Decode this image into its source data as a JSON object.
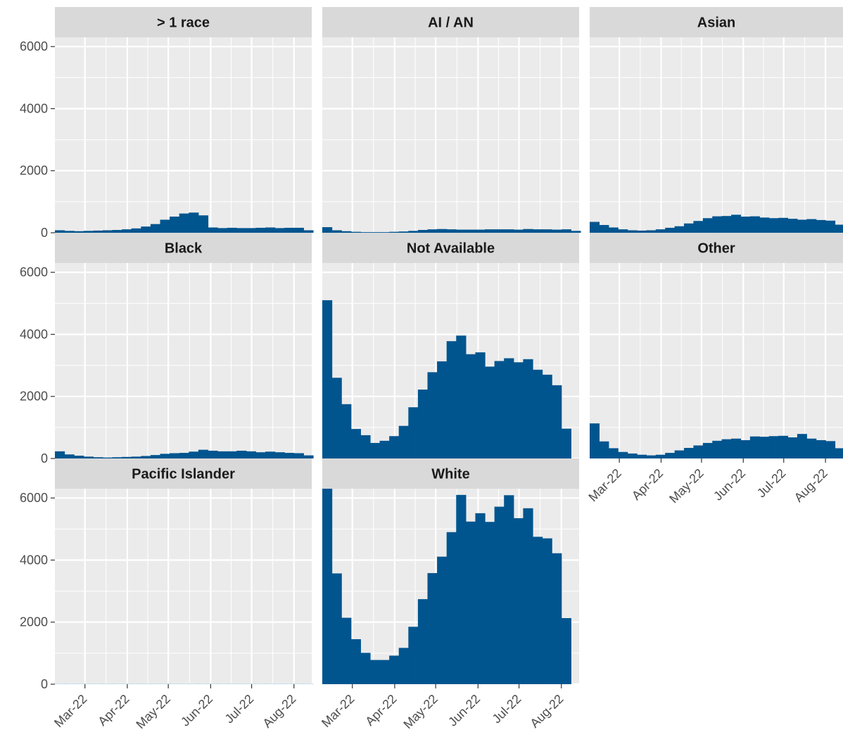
{
  "chart_data": {
    "type": "bar",
    "layout": "facet_wrap",
    "columns": 3,
    "fill_color": "#00558f",
    "panel_background": "#ebebeb",
    "strip_background": "#d9d9d9",
    "grid_color": "#ffffff",
    "shared_y_axis": true,
    "ylim": [
      0,
      6300
    ],
    "y_ticks": [
      0,
      2000,
      4000,
      6000
    ],
    "y_tick_labels": [
      "0",
      "2000",
      "4000",
      "6000"
    ],
    "xlim": [
      "2022-02-07",
      "2022-08-14"
    ],
    "bin_width_days": 7,
    "bin_starts": [
      "2022-02-07",
      "2022-02-14",
      "2022-02-21",
      "2022-02-28",
      "2022-03-07",
      "2022-03-14",
      "2022-03-21",
      "2022-03-28",
      "2022-04-04",
      "2022-04-11",
      "2022-04-18",
      "2022-04-25",
      "2022-05-02",
      "2022-05-09",
      "2022-05-16",
      "2022-05-23",
      "2022-05-30",
      "2022-06-06",
      "2022-06-13",
      "2022-06-20",
      "2022-06-27",
      "2022-07-04",
      "2022-07-11",
      "2022-07-18",
      "2022-07-25",
      "2022-08-01",
      "2022-08-08"
    ],
    "x_ticks": [
      "2022-03-01",
      "2022-04-01",
      "2022-05-01",
      "2022-06-01",
      "2022-07-01",
      "2022-08-01"
    ],
    "x_tick_labels": [
      "Mar-22",
      "Apr-22",
      "May-22",
      "Jun-22",
      "Jul-22",
      "Aug-22"
    ],
    "grid": true,
    "xlabel": "",
    "ylabel": "",
    "panels": [
      {
        "name": "> 1 race",
        "values": [
          80,
          60,
          50,
          60,
          70,
          80,
          90,
          110,
          140,
          200,
          280,
          420,
          520,
          620,
          650,
          560,
          170,
          150,
          160,
          150,
          150,
          160,
          170,
          150,
          160,
          160,
          80
        ]
      },
      {
        "name": "AI / AN",
        "values": [
          180,
          80,
          50,
          30,
          20,
          20,
          20,
          30,
          40,
          60,
          90,
          110,
          120,
          110,
          100,
          100,
          100,
          110,
          110,
          110,
          100,
          120,
          110,
          110,
          100,
          110,
          60
        ]
      },
      {
        "name": "Asian",
        "values": [
          350,
          250,
          170,
          110,
          80,
          70,
          80,
          110,
          160,
          210,
          300,
          380,
          470,
          530,
          540,
          580,
          520,
          530,
          490,
          470,
          480,
          450,
          420,
          440,
          410,
          390,
          260
        ]
      },
      {
        "name": "Black",
        "values": [
          230,
          130,
          90,
          60,
          40,
          30,
          40,
          50,
          60,
          80,
          110,
          150,
          170,
          180,
          220,
          280,
          250,
          230,
          230,
          250,
          230,
          200,
          220,
          200,
          180,
          170,
          100
        ]
      },
      {
        "name": "Not Available",
        "values": [
          5100,
          2600,
          1750,
          950,
          750,
          500,
          570,
          720,
          1050,
          1650,
          2220,
          2780,
          3130,
          3780,
          3960,
          3360,
          3420,
          2960,
          3140,
          3230,
          3100,
          3200,
          2860,
          2700,
          2360,
          960,
          0
        ]
      },
      {
        "name": "Other",
        "values": [
          1130,
          550,
          330,
          210,
          160,
          120,
          100,
          120,
          180,
          260,
          340,
          420,
          500,
          570,
          620,
          640,
          590,
          710,
          700,
          720,
          730,
          680,
          790,
          640,
          590,
          560,
          330
        ]
      },
      {
        "name": "Pacific Islander",
        "values": [
          5,
          5,
          5,
          5,
          5,
          5,
          5,
          5,
          5,
          5,
          5,
          5,
          5,
          5,
          5,
          5,
          5,
          5,
          5,
          5,
          5,
          5,
          5,
          5,
          5,
          5,
          5
        ]
      },
      {
        "name": "White",
        "values": [
          6300,
          3570,
          2140,
          1450,
          1010,
          780,
          780,
          920,
          1170,
          1850,
          2740,
          3580,
          4110,
          4900,
          6100,
          5240,
          5510,
          5230,
          5720,
          6090,
          5350,
          5670,
          4750,
          4700,
          4220,
          2130,
          0
        ]
      }
    ]
  }
}
